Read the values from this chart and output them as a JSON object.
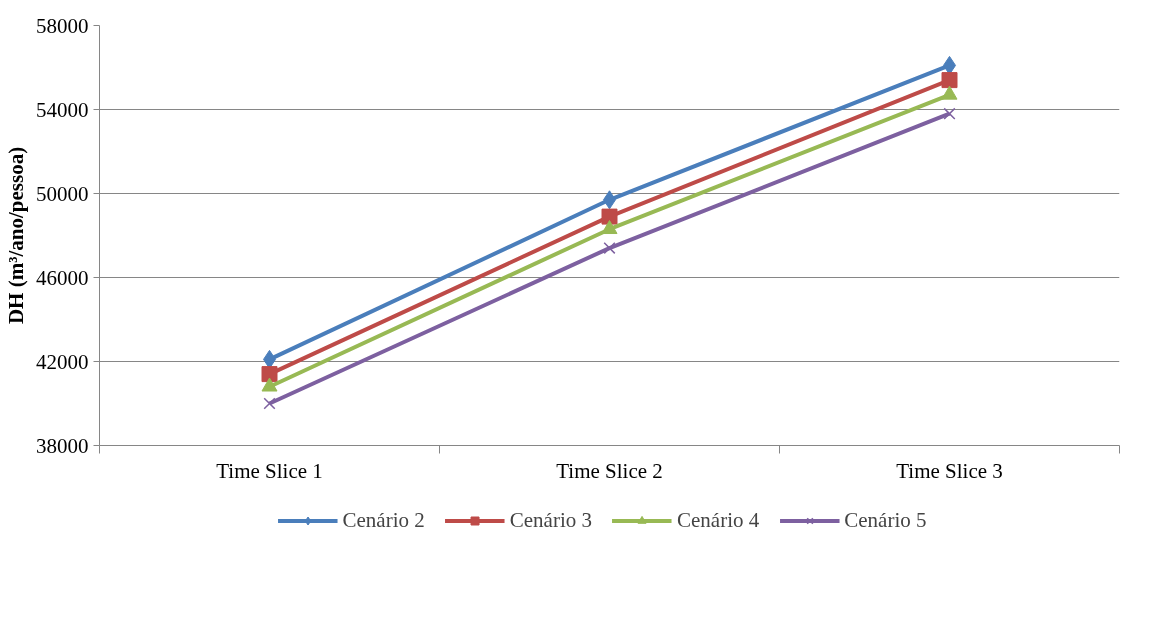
{
  "chart_data": {
    "type": "line",
    "ylabel": "DH (m³/ano/pessoa)",
    "categories": [
      "Time Slice 1",
      "Time Slice 2",
      "Time Slice 3"
    ],
    "series": [
      {
        "name": "Cenário 2",
        "color": "#4a7ebb",
        "marker": "diamond",
        "values": [
          42100,
          49700,
          56100
        ]
      },
      {
        "name": "Cenário 3",
        "color": "#be4b48",
        "marker": "square",
        "values": [
          41400,
          48900,
          55400
        ]
      },
      {
        "name": "Cenário 4",
        "color": "#98b954",
        "marker": "triangle",
        "values": [
          40800,
          48300,
          54700
        ]
      },
      {
        "name": "Cenário 5",
        "color": "#7d60a0",
        "marker": "cross",
        "values": [
          40000,
          47400,
          53800
        ]
      }
    ],
    "ylim": [
      38000,
      58000
    ],
    "yticks": [
      38000,
      42000,
      46000,
      50000,
      54000,
      58000
    ],
    "grid": "y",
    "legend": "bottom"
  }
}
